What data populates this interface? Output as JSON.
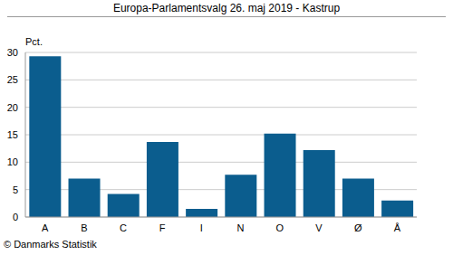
{
  "chart_data": {
    "type": "bar",
    "title": "Europa-Parlamentsvalg 26. maj 2019 - Kastrup",
    "y_label": "Pct.",
    "annotation": "© Danmarks Statistik",
    "categories": [
      "A",
      "B",
      "C",
      "F",
      "I",
      "N",
      "O",
      "V",
      "Ø",
      "Å"
    ],
    "values": [
      29.3,
      7.0,
      4.2,
      13.7,
      1.5,
      7.7,
      15.2,
      12.2,
      7.0,
      3.0
    ],
    "color": "#0b5d8e",
    "ylim": [
      0,
      30
    ],
    "yticks": [
      0,
      5,
      10,
      15,
      20,
      25,
      30
    ],
    "grid": true
  }
}
